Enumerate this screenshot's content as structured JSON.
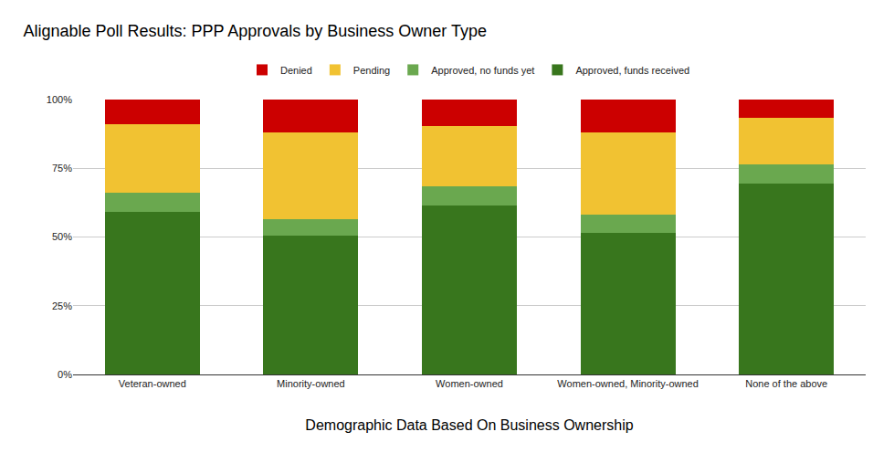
{
  "chart_data": {
    "type": "bar",
    "stacked": true,
    "title": "Alignable Poll Results: PPP Approvals by Business Owner Type",
    "x_label": "Demographic Data Based On Business Ownership",
    "categories": [
      "Veteran-owned",
      "Minority-owned",
      "Women-owned",
      "Women-owned, Minority-owned",
      "None of the above"
    ],
    "series": [
      {
        "name": "Approved, funds received",
        "color": "#38761d",
        "values": [
          59,
          50.5,
          61.5,
          51.5,
          69.5
        ]
      },
      {
        "name": "Approved, no funds yet",
        "color": "#6aa84f",
        "values": [
          7,
          6,
          7,
          6.5,
          7
        ]
      },
      {
        "name": "Pending",
        "color": "#f1c232",
        "values": [
          25,
          31.5,
          22,
          30,
          17
        ]
      },
      {
        "name": "Denied",
        "color": "#cc0000",
        "values": [
          9,
          12,
          9.5,
          12,
          6.5
        ]
      }
    ],
    "ylim": [
      0,
      100
    ],
    "yticks": [
      {
        "value": 0,
        "label": "0%"
      },
      {
        "value": 25,
        "label": "25%"
      },
      {
        "value": 50,
        "label": "50%"
      },
      {
        "value": 75,
        "label": "75%"
      },
      {
        "value": 100,
        "label": "100%"
      }
    ],
    "grid": true,
    "legend": "top"
  }
}
